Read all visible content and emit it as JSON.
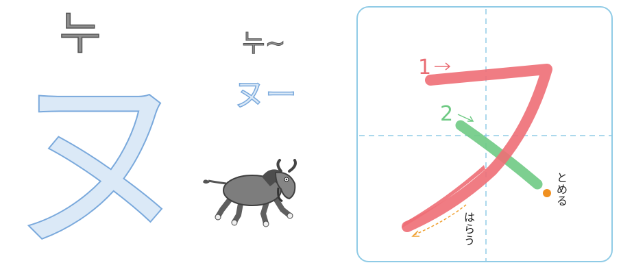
{
  "left_card": {
    "reading": "누",
    "kana": "ヌ"
  },
  "word_card": {
    "reading": "누~",
    "kana": "ヌー",
    "illustration_icon": "wildebeest-icon"
  },
  "stroke_order": {
    "stroke1_number": "1",
    "stroke2_number": "2",
    "stop_label": "とめる",
    "sweep_label": "はらう",
    "colors": {
      "stroke1": "#ee6e76",
      "stroke2": "#6fca84",
      "grid": "#8fcbe6",
      "stop_dot": "#f09020",
      "sweep_arrow": "#f0a030"
    }
  }
}
